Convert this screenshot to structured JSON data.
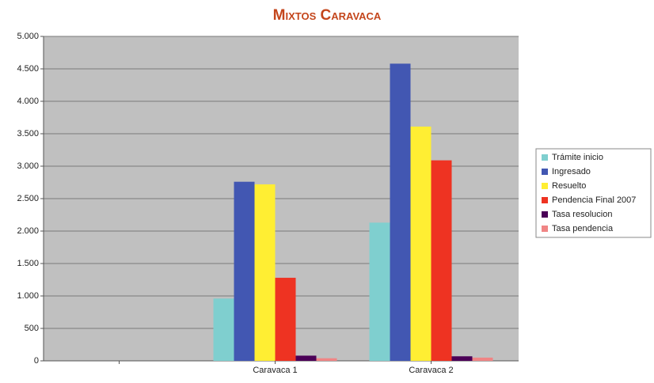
{
  "chart_data": {
    "type": "bar",
    "title": "Mixtos Caravaca",
    "categories": [
      null,
      "Caravaca 1",
      "Caravaca 2"
    ],
    "series": [
      {
        "name": "Trámite inicio",
        "color": "#7fcfcf",
        "values": [
          null,
          960,
          2130
        ]
      },
      {
        "name": "Ingresado",
        "color": "#4257b2",
        "values": [
          null,
          2760,
          4580
        ]
      },
      {
        "name": "Resuelto",
        "color": "#ffee33",
        "values": [
          null,
          2720,
          3610
        ]
      },
      {
        "name": "Pendencia Final 2007",
        "color": "#ee3322",
        "values": [
          null,
          1280,
          3090
        ]
      },
      {
        "name": "Tasa resolucion",
        "color": "#4b0057",
        "values": [
          null,
          80,
          70
        ]
      },
      {
        "name": "Tasa pendencia",
        "color": "#f08585",
        "values": [
          null,
          40,
          50
        ]
      }
    ],
    "ylim": [
      0,
      5000
    ],
    "yticks": [
      0,
      500,
      {
        "value": 1000,
        "label": "1.000"
      },
      {
        "value": 1500,
        "label": "1.500"
      },
      {
        "value": 2000,
        "label": "2.000"
      },
      {
        "value": 2500,
        "label": "2.500"
      },
      {
        "value": 3000,
        "label": "3.000"
      },
      {
        "value": 3500,
        "label": "3.500"
      },
      {
        "value": 4000,
        "label": "4.000"
      },
      {
        "value": 4500,
        "label": "4.500"
      },
      {
        "value": 5000,
        "label": "5.000"
      }
    ],
    "grid": true,
    "legend": "right"
  }
}
